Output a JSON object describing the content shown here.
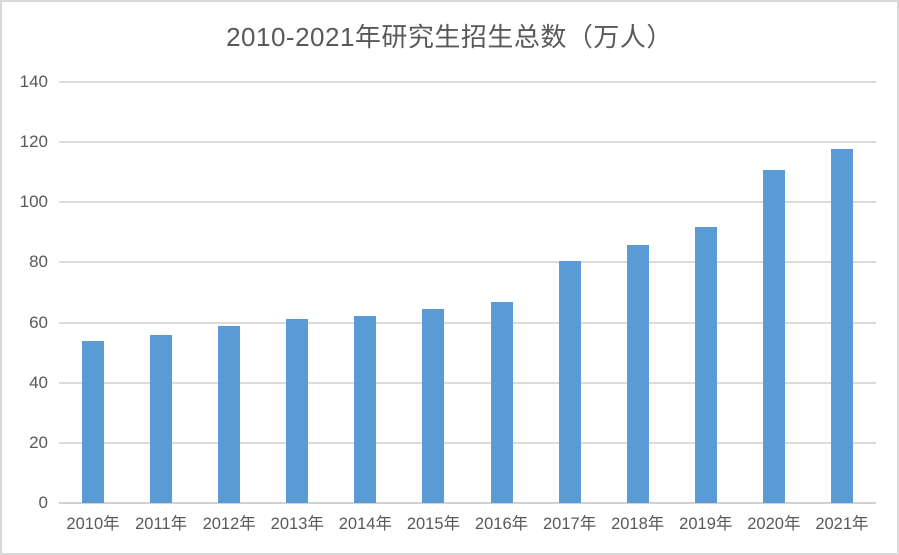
{
  "chart_data": {
    "type": "bar",
    "title": "2010-2021年研究生招生总数（万人）",
    "categories": [
      "2010年",
      "2011年",
      "2012年",
      "2013年",
      "2014年",
      "2015年",
      "2016年",
      "2017年",
      "2018年",
      "2019年",
      "2020年",
      "2021年"
    ],
    "series": [
      {
        "name": "研究生招生总数",
        "values": [
          53.8,
          56.0,
          59.0,
          61.1,
          62.1,
          64.5,
          66.7,
          80.6,
          85.8,
          91.7,
          110.7,
          117.7
        ]
      }
    ],
    "xlabel": "",
    "ylabel": "",
    "ylim": [
      0,
      140
    ],
    "yticks": [
      0,
      20,
      40,
      60,
      80,
      100,
      120,
      140
    ],
    "grid": "horizontal",
    "legend_position": "none",
    "colors": {
      "bar_fill": "#5B9BD5",
      "gridline": "#DBDBDB",
      "axis_line": "#D2D2D2",
      "text": "#595959",
      "frame_border": "#D9D9D9",
      "background": "#FFFFFF"
    }
  }
}
